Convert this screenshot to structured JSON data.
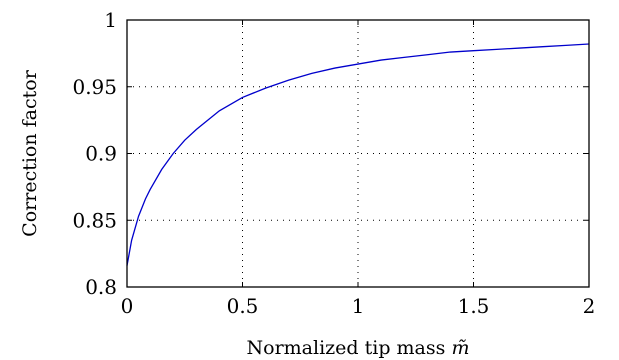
{
  "chart_data": {
    "type": "line",
    "title": "",
    "xlabel": "Normalized tip mass",
    "xlabel_symbol": "m̃",
    "ylabel": "Correction factor",
    "xlim": [
      0,
      2
    ],
    "ylim": [
      0.8,
      1
    ],
    "xticks": [
      0,
      0.5,
      1,
      1.5,
      2
    ],
    "xtick_labels": [
      "0",
      "0.5",
      "1",
      "1.5",
      "2"
    ],
    "yticks": [
      0.8,
      0.85,
      0.9,
      0.95,
      1
    ],
    "ytick_labels": [
      "0.8",
      "0.85",
      "0.9",
      "0.95",
      "1"
    ],
    "grid": true,
    "series": [
      {
        "color": "#0000cc",
        "x": [
          0,
          0.02,
          0.05,
          0.08,
          0.1,
          0.15,
          0.2,
          0.25,
          0.3,
          0.4,
          0.5,
          0.6,
          0.7,
          0.8,
          0.9,
          1.0,
          1.1,
          1.2,
          1.3,
          1.4,
          1.5,
          1.6,
          1.7,
          1.8,
          1.9,
          2.0
        ],
        "y": [
          0.816,
          0.835,
          0.853,
          0.866,
          0.873,
          0.888,
          0.9,
          0.91,
          0.918,
          0.932,
          0.942,
          0.949,
          0.955,
          0.96,
          0.964,
          0.967,
          0.97,
          0.972,
          0.974,
          0.976,
          0.977,
          0.978,
          0.979,
          0.98,
          0.981,
          0.982
        ]
      }
    ]
  }
}
